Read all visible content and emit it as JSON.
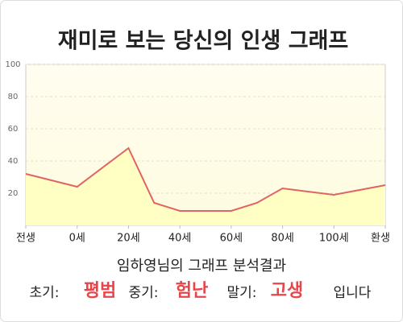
{
  "chart_data": {
    "type": "area",
    "title": "재미로 보는 당신의 인생 그래프",
    "x": [
      -20,
      0,
      20,
      30,
      40,
      60,
      70,
      80,
      100,
      120
    ],
    "values": [
      32,
      24,
      48,
      14,
      9,
      9,
      14,
      23,
      19,
      25
    ],
    "color": "#e06464",
    "fill": "#ffffc4",
    "xlim": [
      -20,
      120
    ],
    "xticks": [
      {
        "value": -20,
        "label": "전생"
      },
      {
        "value": 0,
        "label": "0세"
      },
      {
        "value": 20,
        "label": "20세"
      },
      {
        "value": 40,
        "label": "40세"
      },
      {
        "value": 60,
        "label": "60세"
      },
      {
        "value": 80,
        "label": "80세"
      },
      {
        "value": 100,
        "label": "100세"
      },
      {
        "value": 120,
        "label": "환생"
      }
    ],
    "ylim": [
      0,
      100
    ],
    "yticks": [
      20,
      40,
      60,
      80,
      100
    ],
    "grid": true
  },
  "result": {
    "heading": "임하영님의 그래프 분석결과",
    "items": [
      {
        "label": "초기:",
        "value": "평범"
      },
      {
        "label": "중기:",
        "value": "험난"
      },
      {
        "label": "말기:",
        "value": "고생"
      }
    ],
    "ending": "입니다"
  }
}
